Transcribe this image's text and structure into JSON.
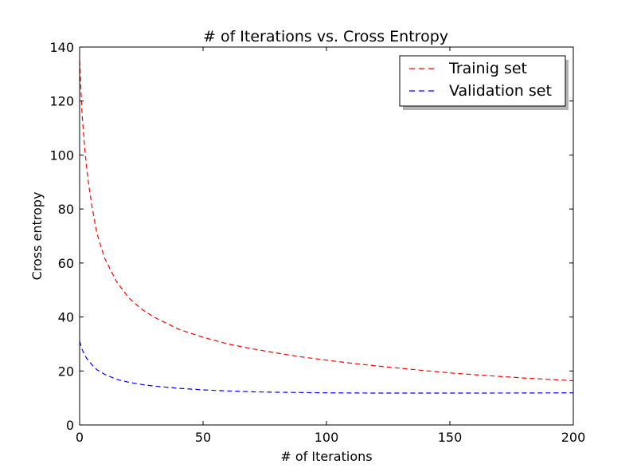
{
  "chart_data": {
    "type": "line",
    "title": "# of Iterations vs. Cross Entropy",
    "xlabel": "# of Iterations",
    "ylabel": "Cross entropy",
    "xlim": [
      0,
      200
    ],
    "ylim": [
      0,
      140
    ],
    "xticks": [
      0,
      50,
      100,
      150,
      200
    ],
    "yticks": [
      0,
      20,
      40,
      60,
      80,
      100,
      120,
      140
    ],
    "grid": false,
    "legend_position": "top-right",
    "series": [
      {
        "name": "Trainig set",
        "color": "#ff0000",
        "style": "dashed",
        "x": [
          0,
          1,
          2,
          3,
          4,
          5,
          7,
          10,
          15,
          20,
          25,
          30,
          40,
          50,
          60,
          70,
          80,
          90,
          100,
          110,
          120,
          130,
          140,
          150,
          160,
          170,
          180,
          190,
          200
        ],
        "y": [
          135,
          115,
          103,
          94,
          87,
          81,
          71,
          62,
          53,
          47,
          43,
          40,
          35.5,
          32.5,
          30,
          28.2,
          26.6,
          25.2,
          24,
          22.9,
          21.9,
          21,
          20.1,
          19.3,
          18.6,
          18,
          17.4,
          16.9,
          16.4
        ]
      },
      {
        "name": "Validation set",
        "color": "#0000ff",
        "style": "dashed",
        "x": [
          0,
          1,
          2,
          3,
          5,
          7,
          10,
          15,
          20,
          25,
          30,
          40,
          50,
          60,
          70,
          80,
          100,
          120,
          140,
          160,
          180,
          200
        ],
        "y": [
          31,
          28,
          26,
          24.5,
          22.3,
          20.5,
          18.8,
          16.9,
          15.8,
          15,
          14.4,
          13.6,
          13,
          12.6,
          12.3,
          12.1,
          11.9,
          11.8,
          11.8,
          11.8,
          11.85,
          11.9
        ]
      }
    ]
  }
}
